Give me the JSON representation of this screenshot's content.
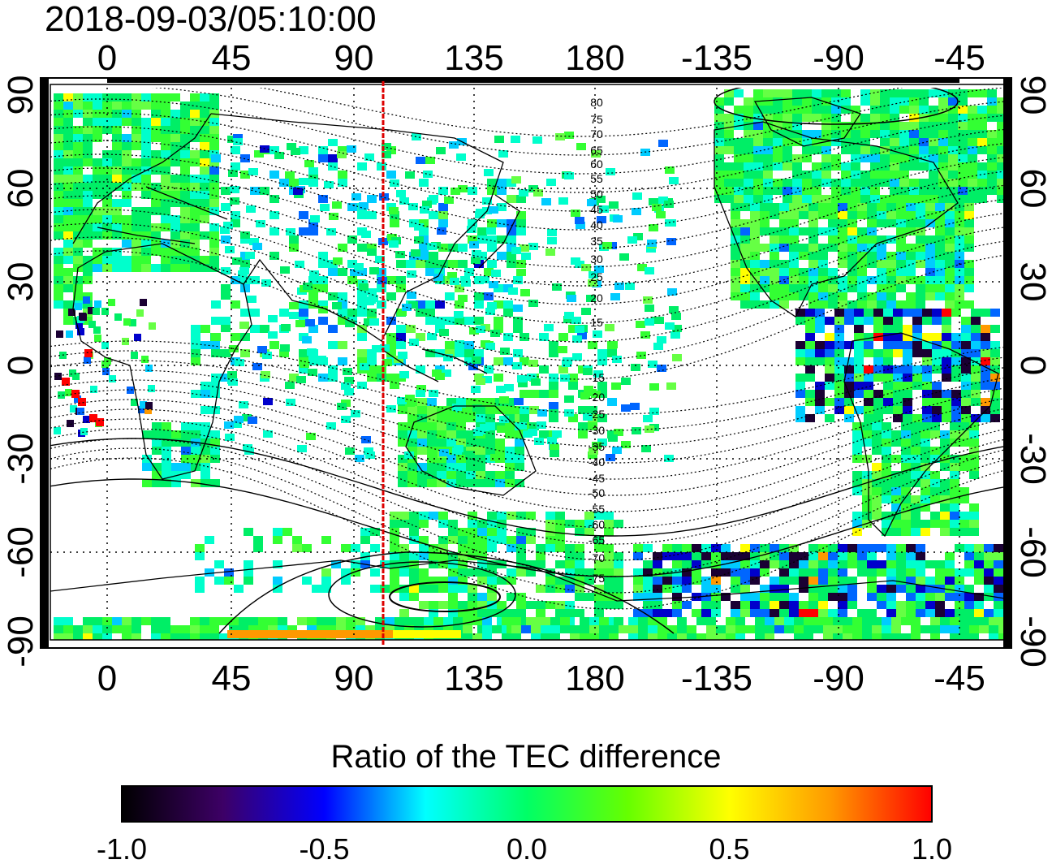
{
  "title": "2018-09-03/05:10:00",
  "colorbar": {
    "title": "Ratio of the TEC difference",
    "ticks": [
      "-1.0",
      "-0.5",
      "0.0",
      "0.5",
      "1.0"
    ],
    "stops": [
      "#000000",
      "#3d0066",
      "#0000ff",
      "#00ffff",
      "#00ff66",
      "#66ff00",
      "#ffff00",
      "#ff9900",
      "#ff0000"
    ]
  },
  "map": {
    "lon_ticks": [
      "0",
      "45",
      "90",
      "135",
      "180",
      "-135",
      "-90",
      "-45"
    ],
    "lat_ticks": [
      "90",
      "60",
      "30",
      "0",
      "-30",
      "-60",
      "-90"
    ],
    "magnetic_lat_labels_north": [
      "80",
      "75",
      "70",
      "65",
      "60",
      "55",
      "50",
      "45",
      "40",
      "35",
      "30",
      "25",
      "20",
      "15"
    ],
    "magnetic_lat_labels_south": [
      "15",
      "20",
      "25",
      "30",
      "35",
      "40",
      "45",
      "50",
      "55",
      "60",
      "65",
      "70",
      "75"
    ],
    "meridian_line_color": "#ff0000",
    "land_line_color": "#000000",
    "data_palette": [
      "#00ee66",
      "#33ff33",
      "#66ff44",
      "#00ffcc",
      "#00ccff",
      "#0066ff",
      "#0000cc",
      "#1a0033",
      "#ffff00",
      "#ff9900",
      "#ff0000"
    ]
  }
}
